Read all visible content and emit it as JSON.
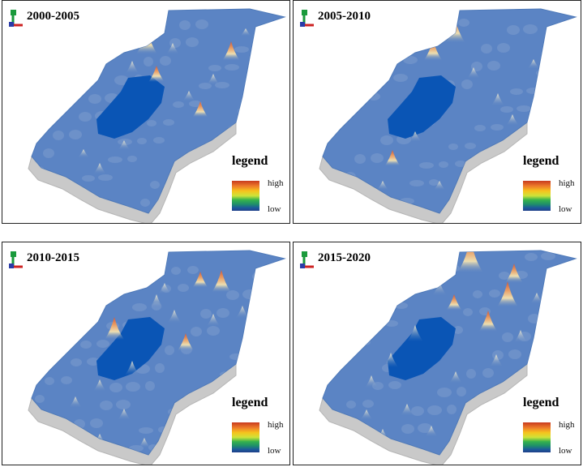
{
  "legend": {
    "title": "legend",
    "high": "high",
    "low": "low"
  },
  "panels": [
    {
      "title": "2000-2005"
    },
    {
      "title": "2005-2010"
    },
    {
      "title": "2010-2015"
    },
    {
      "title": "2015-2020"
    }
  ],
  "colors": {
    "terrain_base": "#5b84c4",
    "terrain_edge": "#4f7ab9",
    "lake": "#0a55b5",
    "base_shadow": "#c9c9c9",
    "peak_high": "#d8532f",
    "peak_mid": "#f4e3b0"
  }
}
